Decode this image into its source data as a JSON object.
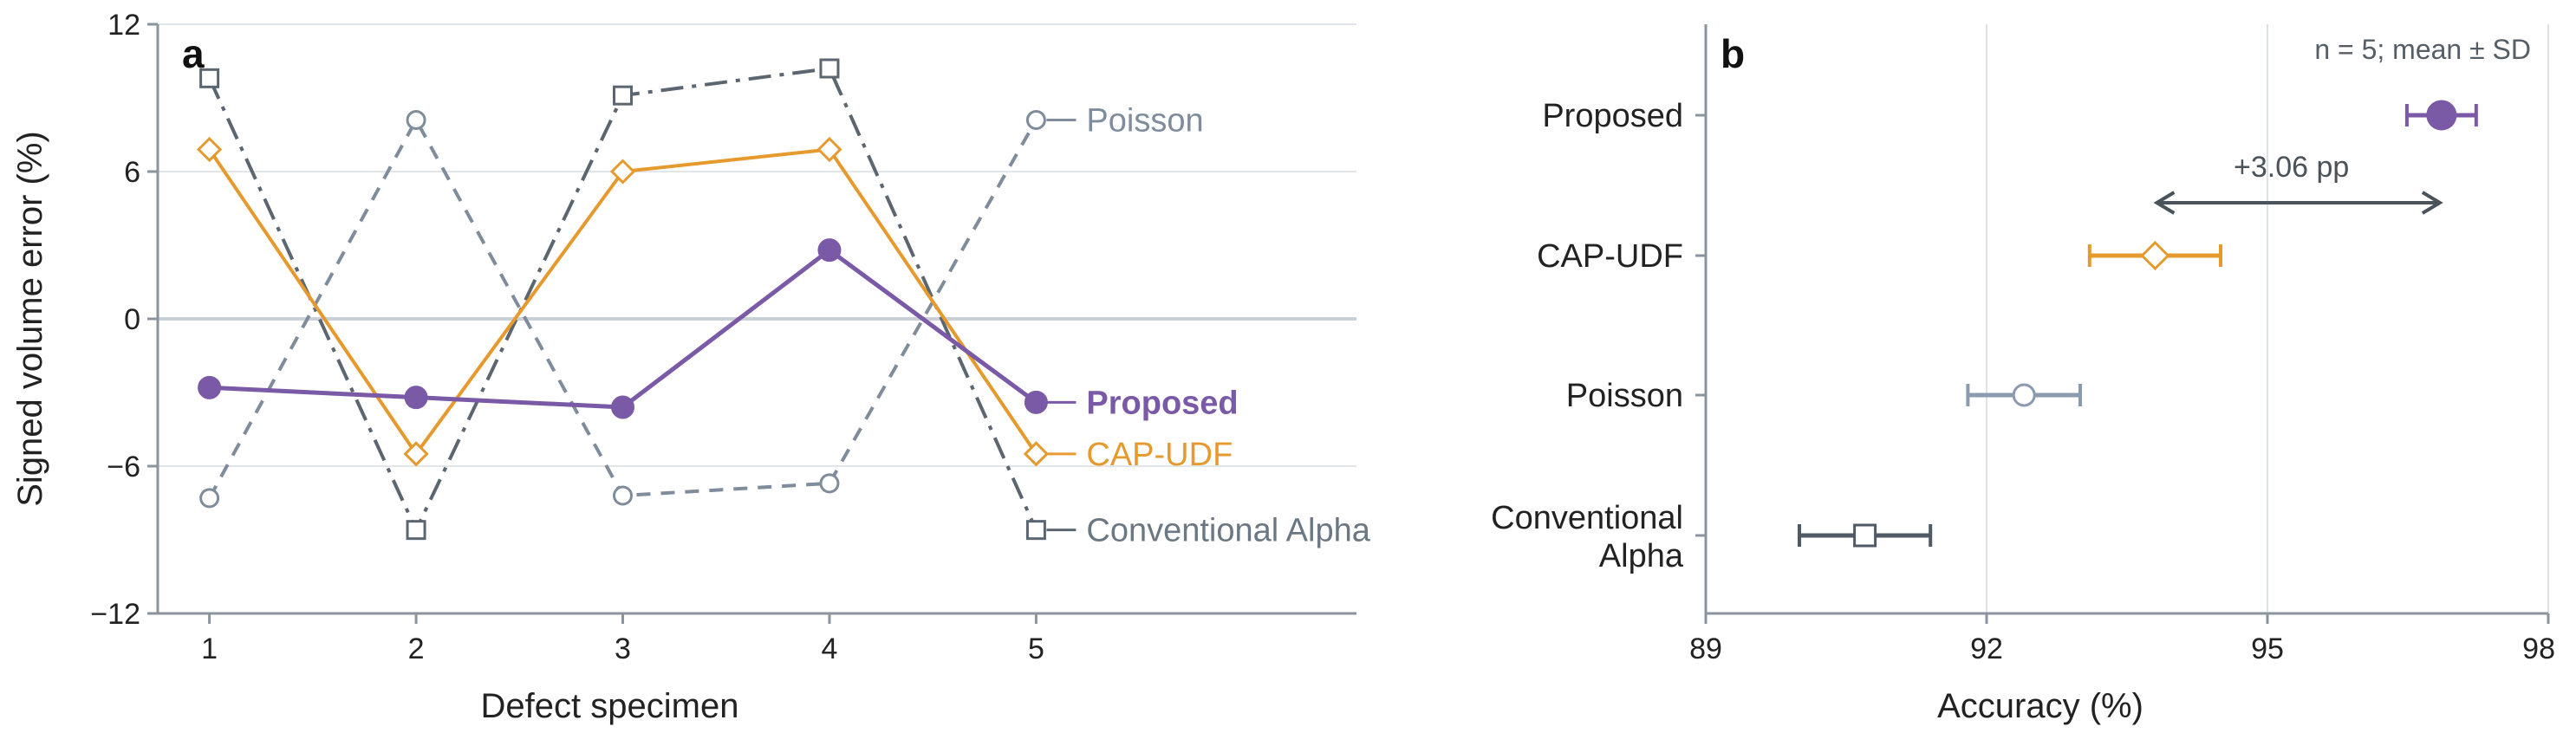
{
  "chart_data": [
    {
      "type": "line",
      "panel": "a",
      "title": "",
      "xlabel": "Defect specimen",
      "ylabel": "Signed volume error (%)",
      "x": [
        1,
        2,
        3,
        4,
        5
      ],
      "x_ticks": [
        "1",
        "2",
        "3",
        "4",
        "5"
      ],
      "ylim": [
        -12,
        12
      ],
      "y_ticks": [
        "−12",
        "−6",
        "0",
        "6",
        "12"
      ],
      "grid": "horizontal",
      "series": [
        {
          "name": "Poisson",
          "values": [
            -7.3,
            8.1,
            -7.2,
            -6.7,
            8.1
          ],
          "color": "#7f8c9b",
          "marker": "open-circle",
          "line": "dashed"
        },
        {
          "name": "Conventional Alpha",
          "values": [
            9.8,
            -8.6,
            9.1,
            10.2,
            -8.6
          ],
          "color": "#5b6670",
          "marker": "open-square",
          "line": "dash-dot"
        },
        {
          "name": "CAP-UDF",
          "values": [
            6.9,
            -5.5,
            6.0,
            6.9,
            -5.5
          ],
          "color": "#e69a2e",
          "marker": "open-diamond",
          "line": "solid"
        },
        {
          "name": "Proposed",
          "values": [
            -2.8,
            -3.2,
            -3.6,
            2.8,
            -3.4
          ],
          "color": "#7a5aa6",
          "marker": "filled-circle",
          "line": "solid",
          "emphasis": "bold"
        }
      ]
    },
    {
      "type": "scatter",
      "panel": "b",
      "title": "",
      "xlabel": "Accuracy (%)",
      "ylabel": "",
      "xlim": [
        89,
        98
      ],
      "x_ticks": [
        "89",
        "92",
        "95",
        "98"
      ],
      "grid": "vertical",
      "note": "n = 5; mean ± SD",
      "annotation": "+3.06 pp",
      "annotation_span": [
        93.8,
        96.86
      ],
      "categories": [
        "Proposed",
        "CAP-UDF",
        "Poisson",
        "Conventional Alpha"
      ],
      "category_lines": [
        [
          "Proposed"
        ],
        [
          "CAP-UDF"
        ],
        [
          "Poisson"
        ],
        [
          "Conventional",
          "Alpha"
        ]
      ],
      "series": [
        {
          "name": "Proposed",
          "mean": 96.86,
          "sd": 0.37,
          "color": "#7a5aa6",
          "marker": "filled-circle"
        },
        {
          "name": "CAP-UDF",
          "mean": 93.8,
          "sd": 0.7,
          "color": "#e69a2e",
          "marker": "open-diamond"
        },
        {
          "name": "Poisson",
          "mean": 92.4,
          "sd": 0.6,
          "color": "#8a9bb0",
          "marker": "open-circle"
        },
        {
          "name": "Conventional Alpha",
          "mean": 90.7,
          "sd": 0.7,
          "color": "#4e5a66",
          "marker": "open-square"
        }
      ]
    }
  ]
}
